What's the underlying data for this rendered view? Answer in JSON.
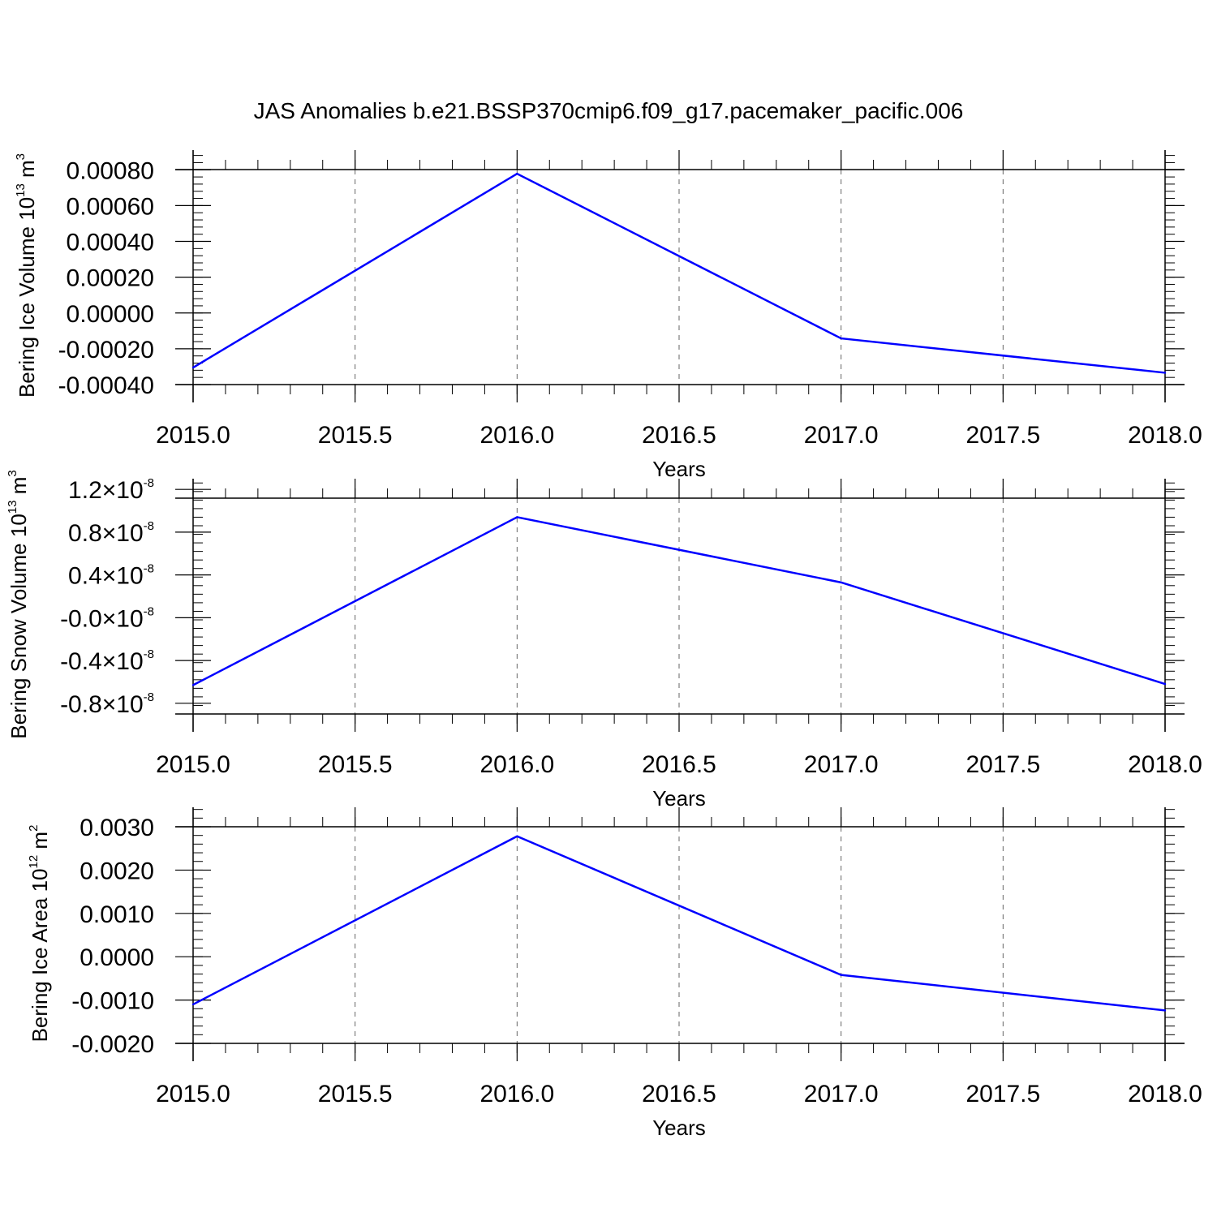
{
  "figure": {
    "title": "JAS Anomalies b.e21.BSSP370cmip6.f09_g17.pacemaker_pacific.006"
  },
  "style": {
    "line_color": "#0000ff",
    "grid_color": "#666666",
    "axis_color": "#000000"
  },
  "chart_data": [
    {
      "type": "line",
      "x": [
        2015,
        2016,
        2017,
        2018
      ],
      "series": [
        {
          "values": [
            -0.000305,
            0.000778,
            -0.000142,
            -0.000334
          ]
        }
      ],
      "xlim": [
        2015,
        2018
      ],
      "ylim": [
        -0.0004,
        0.00091
      ],
      "x_ticks": [
        2015.0,
        2015.5,
        2016.0,
        2016.5,
        2017.0,
        2017.5,
        2018.0
      ],
      "x_tick_labels": [
        "2015.0",
        "2015.5",
        "2016.0",
        "2016.5",
        "2017.0",
        "2017.5",
        "2018.0"
      ],
      "y_ticks": [
        -0.0004,
        -0.0002,
        0.0,
        0.0002,
        0.0004,
        0.0006,
        0.0008
      ],
      "y_tick_labels": [
        {
          "m": "-0.00040"
        },
        {
          "m": "-0.00020"
        },
        {
          "m": "0.00000"
        },
        {
          "m": "0.00020"
        },
        {
          "m": "0.00040"
        },
        {
          "m": "0.00060"
        },
        {
          "m": "0.00080"
        }
      ],
      "ylabel": "Bering Ice Volume 10",
      "ylabel_exp": "13",
      "ylabel_unit": " m",
      "ylabel_unit_exp": "3",
      "xlabel": "Years",
      "grid": "vertical dashed"
    },
    {
      "type": "line",
      "x": [
        2015,
        2016,
        2017,
        2018
      ],
      "series": [
        {
          "values": [
            -6.3e-09,
            9.4e-09,
            3.3e-09,
            -6.2e-09
          ]
        }
      ],
      "xlim": [
        2015,
        2018
      ],
      "ylim": [
        -9e-09,
        1.3e-08
      ],
      "x_ticks": [
        2015.0,
        2015.5,
        2016.0,
        2016.5,
        2017.0,
        2017.5,
        2018.0
      ],
      "x_tick_labels": [
        "2015.0",
        "2015.5",
        "2016.0",
        "2016.5",
        "2017.0",
        "2017.5",
        "2018.0"
      ],
      "y_ticks": [
        -8e-09,
        -4e-09,
        0.0,
        4e-09,
        8e-09,
        1.2e-08
      ],
      "y_tick_labels": [
        {
          "m": "-0.8",
          "x": "×10",
          "e": "-8"
        },
        {
          "m": "-0.4",
          "x": "×10",
          "e": "-8"
        },
        {
          "m": "-0.0",
          "x": "×10",
          "e": "-8"
        },
        {
          "m": "0.4",
          "x": "×10",
          "e": "-8"
        },
        {
          "m": "0.8",
          "x": "×10",
          "e": "-8"
        },
        {
          "m": "1.2",
          "x": "×10",
          "e": "-8"
        }
      ],
      "ylabel": "Bering Snow Volume 10",
      "ylabel_exp": "13",
      "ylabel_unit": " m",
      "ylabel_unit_exp": "3",
      "xlabel": "Years",
      "grid": "vertical dashed"
    },
    {
      "type": "line",
      "x": [
        2015,
        2016,
        2017,
        2018
      ],
      "series": [
        {
          "values": [
            -0.0011,
            0.00278,
            -0.00042,
            -0.00124
          ]
        }
      ],
      "xlim": [
        2015,
        2018
      ],
      "ylim": [
        -0.002,
        0.00345
      ],
      "x_ticks": [
        2015.0,
        2015.5,
        2016.0,
        2016.5,
        2017.0,
        2017.5,
        2018.0
      ],
      "x_tick_labels": [
        "2015.0",
        "2015.5",
        "2016.0",
        "2016.5",
        "2017.0",
        "2017.5",
        "2018.0"
      ],
      "y_ticks": [
        -0.002,
        -0.001,
        0.0,
        0.001,
        0.002,
        0.003
      ],
      "y_tick_labels": [
        {
          "m": "-0.0020"
        },
        {
          "m": "-0.0010"
        },
        {
          "m": "0.0000"
        },
        {
          "m": "0.0010"
        },
        {
          "m": "0.0020"
        },
        {
          "m": "0.0030"
        }
      ],
      "ylabel": "Bering Ice Area 10",
      "ylabel_exp": "12",
      "ylabel_unit": " m",
      "ylabel_unit_exp": "2",
      "xlabel": "Years",
      "grid": "vertical dashed"
    }
  ]
}
